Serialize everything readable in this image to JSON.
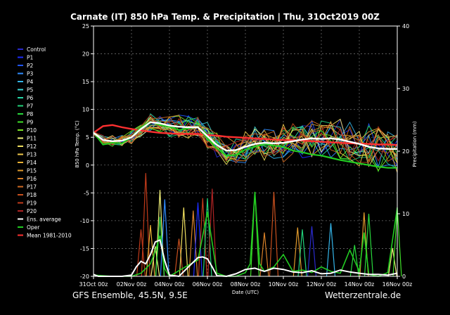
{
  "title": "Carnate  (IT)  850 hPa Temp. & Precipitation | Thu, 31Oct2019 00Z",
  "footer_left": "GFS Ensemble, 45.5N, 9.5E",
  "footer_right": "Wetterzentrale.de",
  "chart_data": {
    "type": "line",
    "xlabel": "Date (UTC)",
    "ylabel_left": "850 hPa Temp. (°C)",
    "ylabel_right": "Precipitation (mm)",
    "ylim_left": [
      -20,
      25
    ],
    "ylim_right": [
      0,
      40
    ],
    "yticks_left": [
      25,
      20,
      15,
      10,
      5,
      0,
      -5,
      -10,
      -15,
      -20
    ],
    "yticks_right": [
      40,
      30,
      20,
      10,
      0
    ],
    "xlim_hours": [
      0,
      384
    ],
    "xticks": [
      "31Oct 00z",
      "02Nov 00z",
      "04Nov 00z",
      "06Nov 00z",
      "08Nov 00z",
      "10Nov 00z",
      "12Nov 00z",
      "14Nov 00z",
      "16Nov 00z"
    ],
    "grid": true,
    "legend_position": "left",
    "legend": [
      {
        "name": "Control",
        "color": "#2a2acd"
      },
      {
        "name": "P1",
        "color": "#1c2cff"
      },
      {
        "name": "P2",
        "color": "#1f55ff"
      },
      {
        "name": "P3",
        "color": "#2f8dff"
      },
      {
        "name": "P4",
        "color": "#34b4e8"
      },
      {
        "name": "P5",
        "color": "#3ed6d6"
      },
      {
        "name": "P6",
        "color": "#26d8a8"
      },
      {
        "name": "P7",
        "color": "#22d27a"
      },
      {
        "name": "P8",
        "color": "#28d83c"
      },
      {
        "name": "P9",
        "color": "#3fe028"
      },
      {
        "name": "P10",
        "color": "#7ce426"
      },
      {
        "name": "P11",
        "color": "#f2f27a"
      },
      {
        "name": "P12",
        "color": "#f0e060"
      },
      {
        "name": "P13",
        "color": "#f0c84a"
      },
      {
        "name": "P14",
        "color": "#e8b034"
      },
      {
        "name": "P15",
        "color": "#e09a2c"
      },
      {
        "name": "P16",
        "color": "#d88028"
      },
      {
        "name": "P17",
        "color": "#d06a22"
      },
      {
        "name": "P18",
        "color": "#c8501e"
      },
      {
        "name": "P19",
        "color": "#c03a1a"
      },
      {
        "name": "P20",
        "color": "#b02424"
      },
      {
        "name": "Ens. average",
        "color": "#ffffff"
      },
      {
        "name": "Oper",
        "color": "#22cc22"
      },
      {
        "name": "Mean 1981-2010",
        "color": "#ff3030"
      }
    ],
    "temperature": {
      "hours": [
        0,
        12,
        24,
        36,
        48,
        60,
        72,
        84,
        96,
        108,
        120,
        132,
        144,
        156,
        168,
        180,
        192,
        204,
        216,
        228,
        240,
        252,
        264,
        276,
        288,
        300,
        312,
        324,
        336,
        348,
        360,
        372,
        384
      ],
      "ens_average": [
        5.8,
        4.5,
        4.3,
        4.4,
        5.0,
        6.5,
        7.7,
        7.5,
        7.1,
        6.9,
        6.8,
        6.8,
        5.2,
        3.6,
        2.6,
        2.7,
        3.3,
        3.8,
        4.0,
        3.9,
        4.0,
        4.3,
        4.6,
        4.8,
        4.7,
        4.8,
        4.6,
        4.2,
        3.8,
        3.3,
        3.0,
        2.9,
        2.9
      ],
      "oper": [
        5.9,
        3.7,
        4.0,
        3.9,
        5.0,
        6.8,
        7.8,
        7.2,
        6.9,
        6.3,
        6.6,
        6.9,
        4.8,
        3.0,
        1.7,
        1.8,
        2.8,
        3.3,
        3.8,
        3.5,
        3.3,
        2.6,
        2.3,
        1.9,
        1.7,
        1.3,
        0.9,
        0.6,
        0.3,
        0.0,
        -0.3,
        -0.5,
        -0.5
      ],
      "mean_1981_2010": [
        5.8,
        7.0,
        7.2,
        6.8,
        6.5,
        6.2,
        6.0,
        5.8,
        5.7,
        5.6,
        5.6,
        5.6,
        5.4,
        5.3,
        5.1,
        5.0,
        4.9,
        4.8,
        4.7,
        4.6,
        4.5,
        4.5,
        4.4,
        4.3,
        4.2,
        4.1,
        4.0,
        3.9,
        3.9,
        3.8,
        3.7,
        3.7,
        3.6
      ],
      "member_spread": [
        0.3,
        0.8,
        0.9,
        1.0,
        1.1,
        1.2,
        1.3,
        1.5,
        1.7,
        1.8,
        1.9,
        2.0,
        2.0,
        2.0,
        2.1,
        2.2,
        2.4,
        2.6,
        2.7,
        2.8,
        2.9,
        3.0,
        3.1,
        3.1,
        3.2,
        3.2,
        3.3,
        3.3,
        3.4,
        3.4,
        3.5,
        3.5,
        3.5
      ]
    },
    "precipitation": {
      "ens_average_hours": [
        0,
        6,
        12,
        24,
        36,
        48,
        54,
        60,
        66,
        72,
        78,
        84,
        90,
        96,
        108,
        120,
        132,
        138,
        144,
        150,
        156,
        168,
        180,
        192,
        204,
        216,
        228,
        240,
        252,
        264,
        276,
        288,
        300,
        312,
        324,
        336,
        348,
        360,
        372,
        384
      ],
      "ens_average_mm": [
        0.3,
        0,
        0,
        0,
        0,
        0.2,
        1.5,
        2.4,
        2.0,
        3.5,
        5.5,
        5.8,
        2.5,
        0.2,
        0,
        1.5,
        3.0,
        3.1,
        2.8,
        1.5,
        0.1,
        0,
        0.4,
        1.1,
        1.3,
        0.8,
        1.3,
        1.1,
        0.7,
        0.6,
        0.9,
        0.4,
        0.5,
        1.0,
        0.7,
        0.5,
        0.3,
        0.3,
        0.2,
        0.5
      ],
      "member_spikes": [
        {
          "hour": 60,
          "mm": 7.5,
          "color": "#c03a1a"
        },
        {
          "hour": 66,
          "mm": 16.5,
          "color": "#c03a1a"
        },
        {
          "hour": 72,
          "mm": 8.2,
          "color": "#e8b034"
        },
        {
          "hour": 78,
          "mm": 4.8,
          "color": "#f2f27a"
        },
        {
          "hour": 84,
          "mm": 13.8,
          "color": "#f2f27a"
        },
        {
          "hour": 84,
          "mm": 9.5,
          "color": "#28d83c"
        },
        {
          "hour": 90,
          "mm": 12.3,
          "color": "#2f8dff"
        },
        {
          "hour": 108,
          "mm": 6.0,
          "color": "#c8501e"
        },
        {
          "hour": 114,
          "mm": 11.0,
          "color": "#f0e060"
        },
        {
          "hour": 126,
          "mm": 10.5,
          "color": "#d88028"
        },
        {
          "hour": 132,
          "mm": 11.8,
          "color": "#1c2cff"
        },
        {
          "hour": 138,
          "mm": 12.5,
          "color": "#c03a1a"
        },
        {
          "hour": 144,
          "mm": 12.5,
          "color": "#22d27a"
        },
        {
          "hour": 150,
          "mm": 14.0,
          "color": "#b02424"
        },
        {
          "hour": 204,
          "mm": 13.5,
          "color": "#3fe028"
        },
        {
          "hour": 216,
          "mm": 7.0,
          "color": "#d88028"
        },
        {
          "hour": 228,
          "mm": 13.5,
          "color": "#c8501e"
        },
        {
          "hour": 258,
          "mm": 7.8,
          "color": "#e09a2c"
        },
        {
          "hour": 264,
          "mm": 7.5,
          "color": "#22d27a"
        },
        {
          "hour": 276,
          "mm": 8.0,
          "color": "#2a2acd"
        },
        {
          "hour": 300,
          "mm": 8.5,
          "color": "#34b4e8"
        },
        {
          "hour": 330,
          "mm": 5.0,
          "color": "#28d83c"
        },
        {
          "hour": 342,
          "mm": 10.2,
          "color": "#e09a2c"
        },
        {
          "hour": 348,
          "mm": 10.0,
          "color": "#28d83c"
        },
        {
          "hour": 378,
          "mm": 4.5,
          "color": "#f2f27a"
        },
        {
          "hour": 384,
          "mm": 11.0,
          "color": "#3fe028"
        }
      ],
      "oper_hours": [
        0,
        24,
        48,
        60,
        72,
        78,
        84,
        90,
        96,
        120,
        132,
        144,
        156,
        168,
        180,
        192,
        198,
        204,
        210,
        216,
        228,
        240,
        252,
        264,
        276,
        288,
        300,
        312,
        324,
        336,
        342,
        348,
        360,
        372,
        384
      ],
      "oper_mm": [
        0.2,
        0,
        0,
        0.5,
        2.0,
        4.0,
        6.5,
        1.2,
        0,
        1.8,
        2.6,
        10.3,
        0.5,
        0,
        0,
        0.6,
        2.0,
        13.5,
        2.0,
        0.8,
        1.5,
        3.5,
        0.8,
        1.0,
        0.6,
        1.5,
        0.8,
        0.5,
        4.2,
        0.8,
        7.0,
        0.3,
        0,
        0.6,
        11.0
      ]
    }
  }
}
